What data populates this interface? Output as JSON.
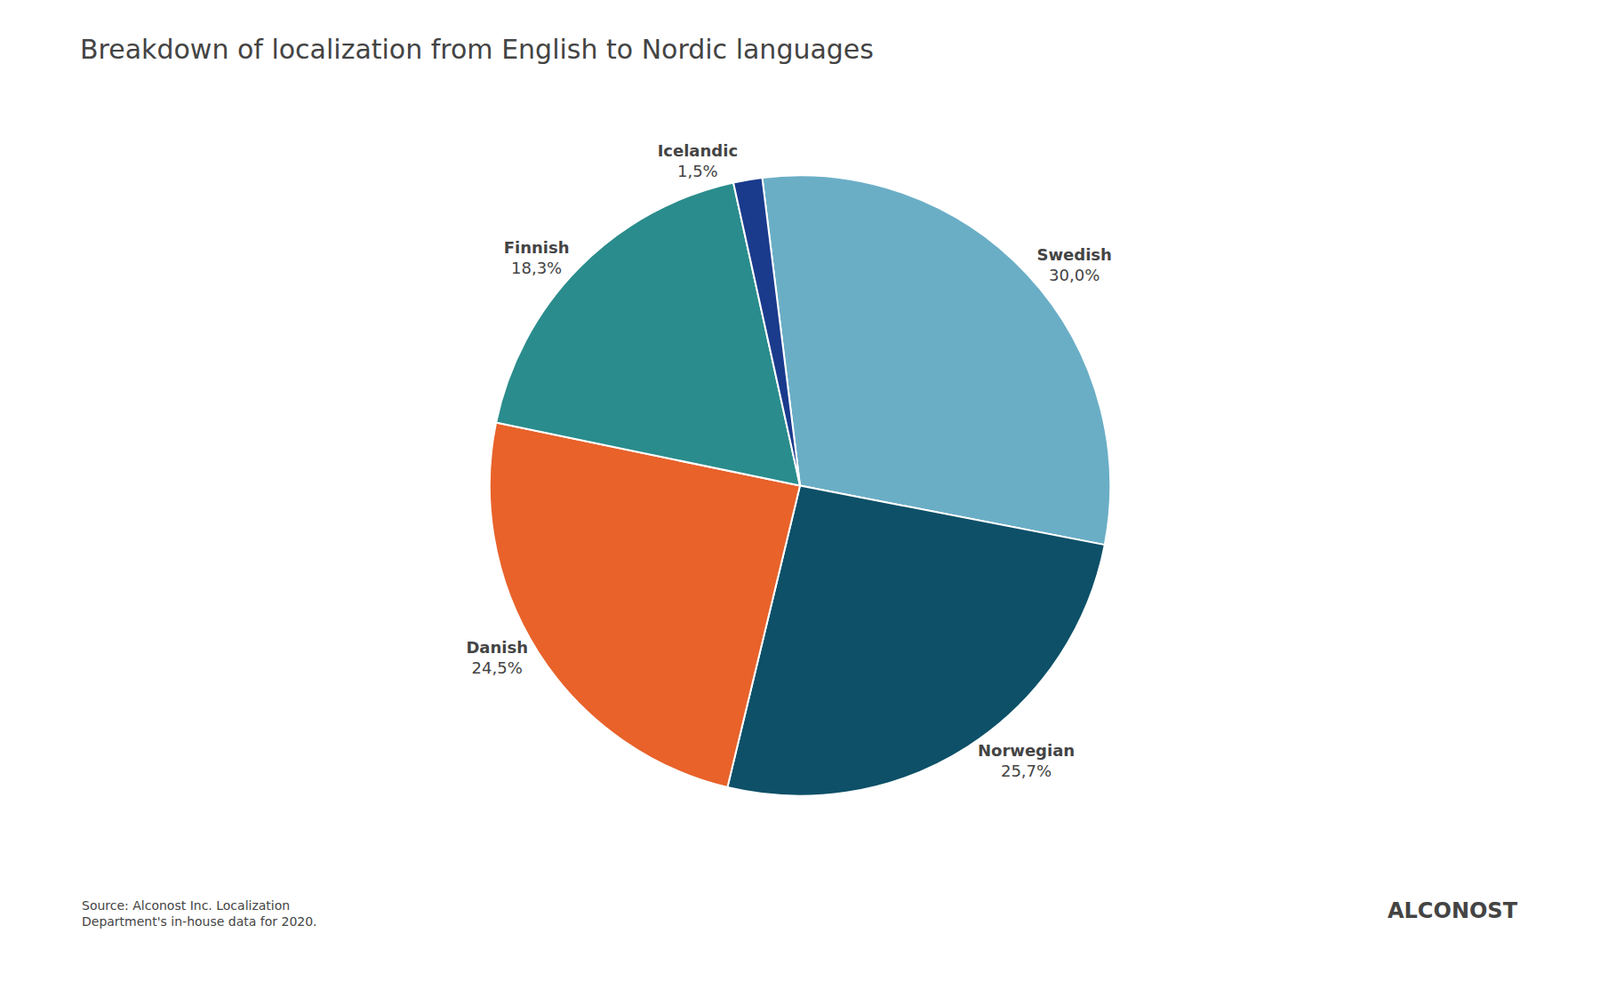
{
  "chart_data": {
    "type": "pie",
    "title": "Breakdown of localization from English to Nordic languages",
    "categories": [
      "Swedish",
      "Norwegian",
      "Danish",
      "Finnish",
      "Icelandic"
    ],
    "values": [
      30.0,
      25.7,
      24.5,
      18.3,
      1.5
    ],
    "value_labels": [
      "30,0%",
      "25,7%",
      "24,5%",
      "18,3%",
      "1,5%"
    ],
    "colors": [
      "#6aaec6",
      "#0d5068",
      "#e8622a",
      "#2a8c8c",
      "#1a3a8c"
    ],
    "data_labels": true,
    "annotations": [
      "Source: Alconost Inc. Localization\nDepartment's in-house data for 2020.",
      "ALCONOST"
    ]
  }
}
